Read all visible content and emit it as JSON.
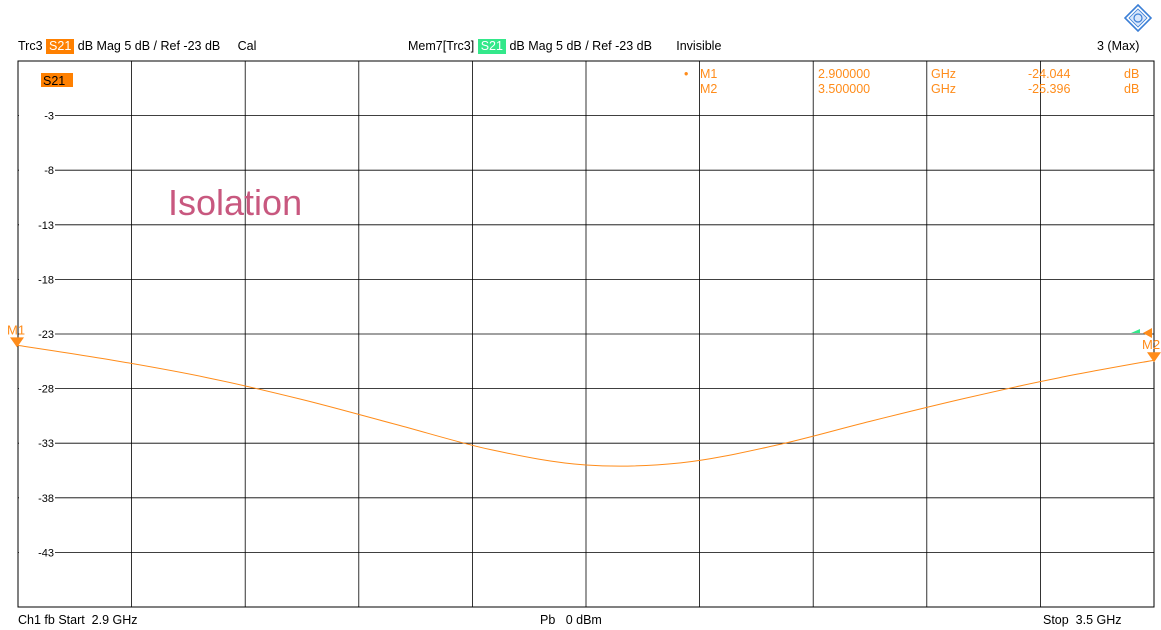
{
  "header": {
    "trace_name": "Trc3",
    "trace_param": "S21",
    "trace_format": "dB Mag",
    "trace_scale": "5 dB /",
    "trace_ref": "Ref -23 dB",
    "trace_status": "Cal",
    "mem_name": "Mem7[Trc3]",
    "mem_param": "S21",
    "mem_format": "dB Mag",
    "mem_scale": "5 dB /",
    "mem_ref": "Ref -23 dB",
    "mem_status": "Invisible",
    "window_label": "3 (Max)"
  },
  "plot": {
    "trace_tag": "S21",
    "annotation": "Isolation"
  },
  "markers": [
    {
      "name": "M1",
      "freq": "2.900000",
      "unit": "GHz",
      "value": "-24.044",
      "value_unit": "dB"
    },
    {
      "name": "M2",
      "freq": "3.500000",
      "unit": "GHz",
      "value": "-25.396",
      "value_unit": "dB"
    }
  ],
  "footer": {
    "channel": "Ch1",
    "mode": "fb",
    "start": "Start  2.9 GHz",
    "power": "Pb   0 dBm",
    "stop": "Stop  3.5 GHz"
  },
  "colors": {
    "trace": "#ff8c1a",
    "memory_tag": "#33e88a",
    "annotation": "#c8587f",
    "grid": "#000000"
  },
  "chart_data": {
    "type": "line",
    "x_unit": "GHz",
    "xlim": [
      2.9,
      3.5
    ],
    "ylim": [
      -48,
      2
    ],
    "y_ticks": [
      -3,
      -8,
      -13,
      -18,
      -23,
      -28,
      -33,
      -38,
      -43
    ],
    "ref_level": -23,
    "series": [
      {
        "name": "S21",
        "x": [
          2.9,
          2.95,
          3.0,
          3.05,
          3.1,
          3.15,
          3.2,
          3.25,
          3.3,
          3.35,
          3.4,
          3.45,
          3.5
        ],
        "y": [
          -24.04,
          -25.4,
          -27.0,
          -29.0,
          -31.3,
          -33.6,
          -35.0,
          -34.8,
          -33.2,
          -31.0,
          -28.9,
          -27.0,
          -25.4
        ]
      }
    ]
  }
}
